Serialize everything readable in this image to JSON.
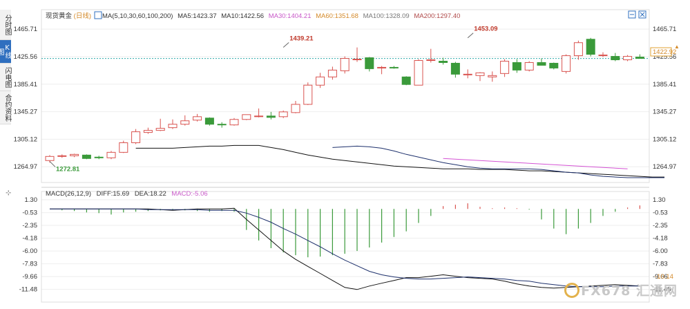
{
  "side_tabs": [
    {
      "label": "分时图",
      "active": false
    },
    {
      "label": "K线图",
      "active": true
    },
    {
      "label": "闪电图",
      "active": false
    },
    {
      "label": "合约资料",
      "active": false
    }
  ],
  "header": {
    "name": "现货黄金",
    "period": "(日线)",
    "ma_params": "MA(5,10,30,60,100,200)",
    "ma5": "MA5:1423.37",
    "ma10": "MA10:1422.56",
    "ma30": "MA30:1404.21",
    "ma60": "MA60:1351.68",
    "ma100": "MA100:1328.09",
    "ma200": "MA200:1297.40"
  },
  "macd_header": {
    "params": "MACD(26,12,9)",
    "diff": "DIFF:15.69",
    "dea": "DEA:18.22",
    "macd": "MACD:-5.06"
  },
  "colors": {
    "up": "#d9534f",
    "down": "#3a9a3a",
    "ma_line": "#1c2f6b",
    "ma_pink": "#d452d4",
    "grid": "#eeeeee",
    "price_ref": "#2ca9a9",
    "accent": "#2f6fbf"
  },
  "chart_data": [
    {
      "type": "candlestick",
      "y_ticks": [
        "1465.71",
        "1425.56",
        "1385.41",
        "1345.27",
        "1305.12",
        "1264.97"
      ],
      "ylim": [
        1244,
        1478
      ],
      "current_price": "1422.92",
      "annotations": [
        {
          "label": "1272.81",
          "index": 0,
          "value": 1272.81
        },
        {
          "label": "1439.21",
          "index": 19,
          "value": 1439.21
        },
        {
          "label": "1453.09",
          "index": 34,
          "value": 1453.09
        }
      ],
      "candles": [
        {
          "o": 1274,
          "h": 1282,
          "l": 1271,
          "c": 1280
        },
        {
          "o": 1280,
          "h": 1283,
          "l": 1278,
          "c": 1281
        },
        {
          "o": 1281,
          "h": 1284,
          "l": 1279,
          "c": 1283
        },
        {
          "o": 1282,
          "h": 1283,
          "l": 1276,
          "c": 1277
        },
        {
          "o": 1279,
          "h": 1281,
          "l": 1276,
          "c": 1278
        },
        {
          "o": 1278,
          "h": 1288,
          "l": 1276,
          "c": 1286
        },
        {
          "o": 1286,
          "h": 1303,
          "l": 1285,
          "c": 1300
        },
        {
          "o": 1300,
          "h": 1320,
          "l": 1298,
          "c": 1316
        },
        {
          "o": 1315,
          "h": 1322,
          "l": 1313,
          "c": 1318
        },
        {
          "o": 1318,
          "h": 1335,
          "l": 1317,
          "c": 1321
        },
        {
          "o": 1322,
          "h": 1334,
          "l": 1320,
          "c": 1327
        },
        {
          "o": 1327,
          "h": 1340,
          "l": 1325,
          "c": 1332
        },
        {
          "o": 1333,
          "h": 1342,
          "l": 1331,
          "c": 1338
        },
        {
          "o": 1336,
          "h": 1337,
          "l": 1325,
          "c": 1327
        },
        {
          "o": 1327,
          "h": 1330,
          "l": 1322,
          "c": 1326
        },
        {
          "o": 1326,
          "h": 1336,
          "l": 1325,
          "c": 1334
        },
        {
          "o": 1334,
          "h": 1341,
          "l": 1333,
          "c": 1341
        },
        {
          "o": 1339,
          "h": 1350,
          "l": 1337,
          "c": 1339
        },
        {
          "o": 1339,
          "h": 1345,
          "l": 1334,
          "c": 1337
        },
        {
          "o": 1338,
          "h": 1347,
          "l": 1336,
          "c": 1345
        },
        {
          "o": 1344,
          "h": 1361,
          "l": 1343,
          "c": 1356
        },
        {
          "o": 1356,
          "h": 1388,
          "l": 1355,
          "c": 1384
        },
        {
          "o": 1384,
          "h": 1402,
          "l": 1380,
          "c": 1396
        },
        {
          "o": 1396,
          "h": 1411,
          "l": 1392,
          "c": 1406
        },
        {
          "o": 1405,
          "h": 1426,
          "l": 1401,
          "c": 1423
        },
        {
          "o": 1421,
          "h": 1439,
          "l": 1418,
          "c": 1422
        },
        {
          "o": 1424,
          "h": 1425,
          "l": 1404,
          "c": 1408
        },
        {
          "o": 1409,
          "h": 1412,
          "l": 1400,
          "c": 1410
        },
        {
          "o": 1410,
          "h": 1412,
          "l": 1408,
          "c": 1409
        },
        {
          "o": 1396,
          "h": 1397,
          "l": 1384,
          "c": 1385
        },
        {
          "o": 1384,
          "h": 1422,
          "l": 1384,
          "c": 1420
        },
        {
          "o": 1420,
          "h": 1437,
          "l": 1417,
          "c": 1421
        },
        {
          "o": 1419,
          "h": 1424,
          "l": 1414,
          "c": 1417
        },
        {
          "o": 1416,
          "h": 1418,
          "l": 1395,
          "c": 1400
        },
        {
          "o": 1400,
          "h": 1407,
          "l": 1394,
          "c": 1400
        },
        {
          "o": 1398,
          "h": 1403,
          "l": 1390,
          "c": 1402
        },
        {
          "o": 1396,
          "h": 1404,
          "l": 1389,
          "c": 1398
        },
        {
          "o": 1401,
          "h": 1422,
          "l": 1396,
          "c": 1419
        },
        {
          "o": 1417,
          "h": 1422,
          "l": 1402,
          "c": 1406
        },
        {
          "o": 1406,
          "h": 1419,
          "l": 1404,
          "c": 1417
        },
        {
          "o": 1417,
          "h": 1423,
          "l": 1413,
          "c": 1413
        },
        {
          "o": 1416,
          "h": 1417,
          "l": 1407,
          "c": 1409
        },
        {
          "o": 1404,
          "h": 1429,
          "l": 1401,
          "c": 1427
        },
        {
          "o": 1427,
          "h": 1449,
          "l": 1421,
          "c": 1446
        },
        {
          "o": 1451,
          "h": 1453,
          "l": 1426,
          "c": 1429
        },
        {
          "o": 1428,
          "h": 1432,
          "l": 1425,
          "c": 1428
        },
        {
          "o": 1426,
          "h": 1431,
          "l": 1419,
          "c": 1421
        },
        {
          "o": 1421,
          "h": 1428,
          "l": 1419,
          "c": 1426
        },
        {
          "o": 1425,
          "h": 1429,
          "l": 1423,
          "c": 1423
        }
      ],
      "ma_black": [
        1292,
        1292,
        1292,
        1292,
        1293,
        1294,
        1295,
        1295,
        1296,
        1296,
        1296,
        1293,
        1290,
        1286,
        1282,
        1279,
        1276,
        1274,
        1272,
        1270,
        1268,
        1266,
        1265,
        1264,
        1263,
        1262,
        1262,
        1262,
        1261,
        1261,
        1261,
        1260,
        1259,
        1259,
        1258,
        1257,
        1256,
        1255,
        1254,
        1253,
        1252,
        1251,
        1250,
        1250
      ],
      "ma_black_start": 7,
      "ma_navy": [
        1293,
        1294,
        1295,
        1294,
        1292,
        1288,
        1283,
        1279,
        1275,
        1271,
        1268,
        1265,
        1263,
        1262,
        1262,
        1262,
        1262,
        1261,
        1259,
        1257,
        1256,
        1253,
        1251,
        1250,
        1249,
        1249,
        1249,
        1249
      ],
      "ma_navy_start": 23,
      "ma_pink": [
        1277,
        1276,
        1275,
        1274,
        1273,
        1272,
        1271,
        1270,
        1269,
        1268,
        1267,
        1266,
        1265,
        1264,
        1263,
        1262
      ],
      "ma_pink_start": 32
    },
    {
      "type": "bar",
      "name": "MACD",
      "y_ticks": [
        "1.30",
        "-0.53",
        "-2.35",
        "-4.18",
        "-6.00",
        "-7.83",
        "-9.66",
        "-11.48"
      ],
      "ylim": [
        -12.6,
        1.6
      ],
      "current_dea": "-10.14",
      "hist": [
        0,
        -0.2,
        -0.3,
        -0.5,
        -0.6,
        -0.8,
        -0.5,
        -0.4,
        -0.3,
        -0.2,
        -0.2,
        -0.2,
        -0.3,
        -0.4,
        -0.3,
        -0.4,
        -3.0,
        -4.5,
        -5.6,
        -6.2,
        -6.6,
        -6.9,
        -6.8,
        -6.6,
        -6.4,
        -6.0,
        -5.5,
        -4.8,
        -4.0,
        -3.2,
        -2.0,
        -1.0,
        0.4,
        0.6,
        0.8,
        0.3,
        0.1,
        0.2,
        0.1,
        -0.1,
        -1.5,
        -2.8,
        -3.6,
        -2.8,
        -2.0,
        -1.0,
        -0.4,
        0.2,
        0.5
      ],
      "dif": [
        0,
        0,
        0,
        0,
        0,
        0,
        0,
        0,
        0,
        -0.1,
        -0.2,
        -0.1,
        0,
        0,
        0,
        0.1,
        -1.5,
        -3.0,
        -4.5,
        -6.0,
        -7.2,
        -8.2,
        -9.2,
        -10.2,
        -11.2,
        -11.5,
        -11.0,
        -10.6,
        -10.2,
        -9.8,
        -9.8,
        -9.6,
        -9.4,
        -9.6,
        -9.8,
        -9.9,
        -10.0,
        -10.3,
        -10.7,
        -11.0,
        -11.2,
        -11.3,
        -11.2,
        -11.1,
        -11.0,
        -10.9,
        -10.8,
        -10.9,
        -11.0
      ],
      "dea": [
        0,
        0,
        0,
        0,
        0,
        0,
        0,
        0,
        -0.1,
        -0.1,
        -0.1,
        -0.1,
        -0.1,
        -0.2,
        -0.2,
        -0.2,
        -0.6,
        -1.2,
        -1.9,
        -2.8,
        -3.6,
        -4.5,
        -5.4,
        -6.4,
        -7.3,
        -8.1,
        -8.9,
        -9.4,
        -9.7,
        -9.9,
        -10.0,
        -10.0,
        -9.9,
        -9.8,
        -9.7,
        -9.8,
        -9.9,
        -10.0,
        -10.2,
        -10.3,
        -10.6,
        -10.8,
        -11.0,
        -11.1,
        -11.1,
        -11.1,
        -11.0,
        -11.0,
        -11.0
      ]
    }
  ],
  "watermark": "FX678 汇通网"
}
